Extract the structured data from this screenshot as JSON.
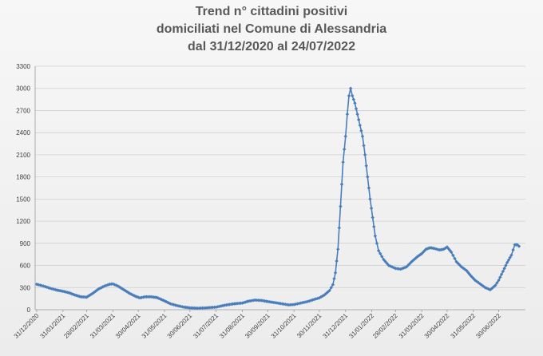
{
  "chart_data": {
    "type": "line",
    "title_lines": [
      "Trend n° cittadini positivi",
      "domiciliati nel Comune di Alessandria",
      "dal 31/12/2020 al 24/07/2022"
    ],
    "xlabel": "",
    "ylabel": "",
    "x_range_days": [
      0,
      570
    ],
    "ylim": [
      0,
      3300
    ],
    "y_ticks": [
      0,
      300,
      600,
      900,
      1200,
      1500,
      1800,
      2100,
      2400,
      2700,
      3000,
      3300
    ],
    "x_ticks": [
      {
        "label": "31/12/2020",
        "day": 0
      },
      {
        "label": "31/01/2021",
        "day": 31
      },
      {
        "label": "28/02/2021",
        "day": 59
      },
      {
        "label": "31/03/2021",
        "day": 90
      },
      {
        "label": "30/04/2021",
        "day": 120
      },
      {
        "label": "31/05/2021",
        "day": 151
      },
      {
        "label": "30/06/2021",
        "day": 181
      },
      {
        "label": "31/07/2021",
        "day": 212
      },
      {
        "label": "31/08/2021",
        "day": 243
      },
      {
        "label": "30/09/2021",
        "day": 273
      },
      {
        "label": "31/10/2021",
        "day": 304
      },
      {
        "label": "30/11/2021",
        "day": 334
      },
      {
        "label": "31/12/2021",
        "day": 365
      },
      {
        "label": "31/01/2022",
        "day": 396
      },
      {
        "label": "28/02/2022",
        "day": 424
      },
      {
        "label": "31/03/2022",
        "day": 455
      },
      {
        "label": "30/04/2022",
        "day": 485
      },
      {
        "label": "31/05/2022",
        "day": 516
      },
      {
        "label": "30/06/2022",
        "day": 546
      }
    ],
    "grid": true,
    "legend": "none",
    "series_color": "#4a7ebb",
    "series": [
      {
        "name": "",
        "points": [
          [
            0,
            345
          ],
          [
            8,
            320
          ],
          [
            16,
            290
          ],
          [
            24,
            265
          ],
          [
            31,
            250
          ],
          [
            38,
            230
          ],
          [
            45,
            200
          ],
          [
            52,
            175
          ],
          [
            59,
            170
          ],
          [
            66,
            220
          ],
          [
            73,
            280
          ],
          [
            80,
            320
          ],
          [
            86,
            345
          ],
          [
            90,
            350
          ],
          [
            96,
            320
          ],
          [
            103,
            270
          ],
          [
            110,
            220
          ],
          [
            117,
            180
          ],
          [
            122,
            160
          ],
          [
            128,
            175
          ],
          [
            135,
            175
          ],
          [
            142,
            165
          ],
          [
            151,
            120
          ],
          [
            158,
            80
          ],
          [
            166,
            55
          ],
          [
            174,
            35
          ],
          [
            181,
            25
          ],
          [
            190,
            20
          ],
          [
            200,
            25
          ],
          [
            212,
            35
          ],
          [
            222,
            60
          ],
          [
            230,
            75
          ],
          [
            237,
            85
          ],
          [
            243,
            90
          ],
          [
            250,
            115
          ],
          [
            258,
            130
          ],
          [
            266,
            125
          ],
          [
            273,
            110
          ],
          [
            282,
            95
          ],
          [
            290,
            80
          ],
          [
            298,
            65
          ],
          [
            304,
            70
          ],
          [
            312,
            90
          ],
          [
            320,
            110
          ],
          [
            328,
            140
          ],
          [
            334,
            160
          ],
          [
            340,
            200
          ],
          [
            346,
            260
          ],
          [
            350,
            340
          ],
          [
            353,
            500
          ],
          [
            356,
            820
          ],
          [
            359,
            1400
          ],
          [
            362,
            2000
          ],
          [
            365,
            2350
          ],
          [
            367,
            2650
          ],
          [
            369,
            2900
          ],
          [
            371,
            3000
          ],
          [
            373,
            2900
          ],
          [
            376,
            2800
          ],
          [
            379,
            2650
          ],
          [
            382,
            2500
          ],
          [
            385,
            2350
          ],
          [
            388,
            2100
          ],
          [
            391,
            1800
          ],
          [
            394,
            1500
          ],
          [
            397,
            1250
          ],
          [
            400,
            1000
          ],
          [
            404,
            800
          ],
          [
            410,
            680
          ],
          [
            416,
            600
          ],
          [
            424,
            560
          ],
          [
            430,
            550
          ],
          [
            437,
            580
          ],
          [
            443,
            650
          ],
          [
            450,
            720
          ],
          [
            455,
            760
          ],
          [
            460,
            820
          ],
          [
            465,
            840
          ],
          [
            470,
            830
          ],
          [
            476,
            810
          ],
          [
            481,
            820
          ],
          [
            485,
            850
          ],
          [
            490,
            780
          ],
          [
            496,
            650
          ],
          [
            502,
            580
          ],
          [
            508,
            530
          ],
          [
            513,
            460
          ],
          [
            518,
            400
          ],
          [
            524,
            350
          ],
          [
            530,
            300
          ],
          [
            536,
            270
          ],
          [
            542,
            330
          ],
          [
            546,
            400
          ],
          [
            551,
            520
          ],
          [
            556,
            640
          ],
          [
            561,
            740
          ],
          [
            565,
            880
          ],
          [
            568,
            880
          ],
          [
            570,
            860
          ]
        ]
      }
    ]
  }
}
